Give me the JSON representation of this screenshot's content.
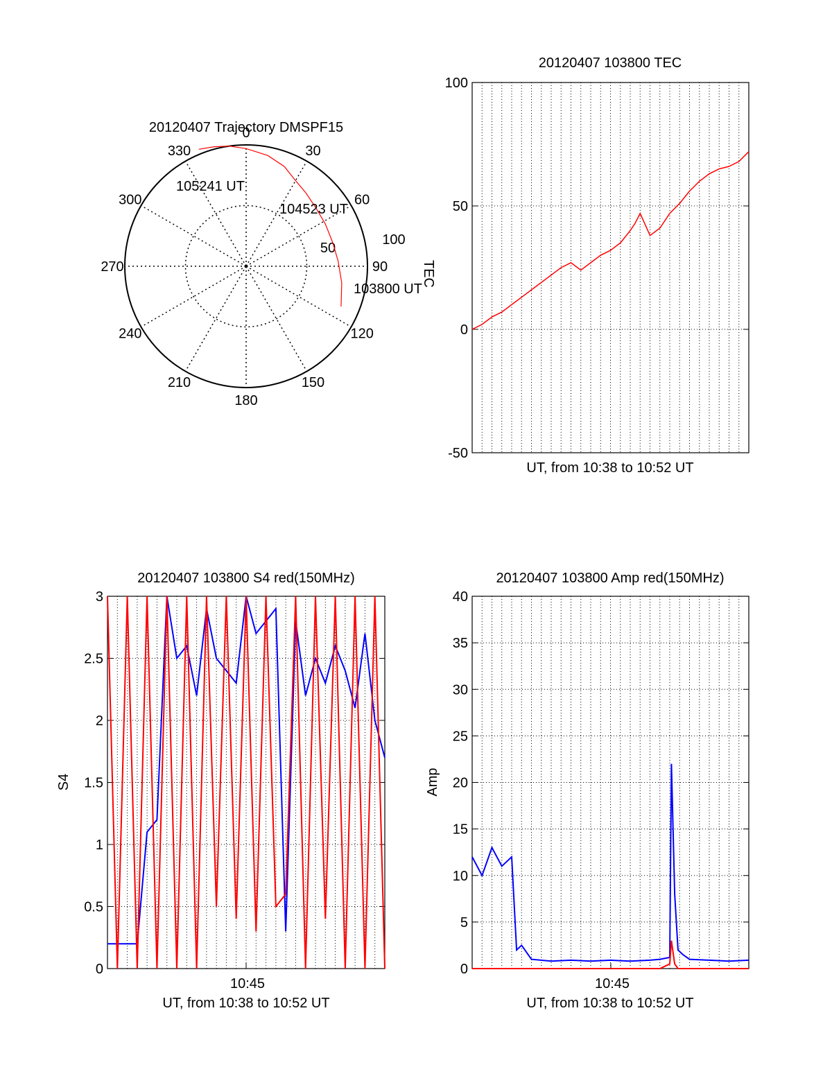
{
  "chart_data": [
    {
      "id": "polar",
      "type": "polar",
      "title": "20120407 Trajectory DMSPF15",
      "azimuth_labels": [
        "0",
        "30",
        "60",
        "90",
        "120",
        "150",
        "180",
        "210",
        "240",
        "270",
        "300",
        "330"
      ],
      "elevation_labels": [
        "50",
        "100"
      ],
      "point_labels": [
        "105241 UT",
        "104523 UT",
        "103800 UT"
      ],
      "track": [
        {
          "azimuth": 113,
          "zenith": 85
        },
        {
          "azimuth": 100,
          "zenith": 80
        },
        {
          "azimuth": 87,
          "zenith": 76
        },
        {
          "azimuth": 75,
          "zenith": 74
        },
        {
          "azimuth": 62,
          "zenith": 74
        },
        {
          "azimuth": 50,
          "zenith": 75
        },
        {
          "azimuth": 39,
          "zenith": 78
        },
        {
          "azimuth": 29,
          "zenith": 82
        },
        {
          "azimuth": 21,
          "zenith": 88
        },
        {
          "azimuth": 11,
          "zenith": 93
        },
        {
          "azimuth": 0,
          "zenith": 97
        },
        {
          "azimuth": -8,
          "zenith": 100
        },
        {
          "azimuth": -15,
          "zenith": 102
        },
        {
          "azimuth": -22,
          "zenith": 104
        }
      ],
      "line_color": "#ff0000"
    },
    {
      "id": "tec",
      "type": "line",
      "title": "20120407 103800 TEC",
      "xlabel": "UT, from 10:38 to 10:52 UT",
      "ylabel": "TEC",
      "ylim": [
        -50,
        100
      ],
      "yticks": [
        "-50",
        "0",
        "50",
        "100"
      ],
      "x": [
        "10:38:00",
        "10:38:30",
        "10:39:00",
        "10:39:30",
        "10:40:00",
        "10:40:30",
        "10:41:00",
        "10:41:30",
        "10:42:00",
        "10:42:30",
        "10:43:00",
        "10:43:30",
        "10:44:00",
        "10:44:30",
        "10:45:00",
        "10:45:30",
        "10:46:00",
        "10:46:15",
        "10:46:30",
        "10:47:00",
        "10:47:30",
        "10:48:00",
        "10:48:30",
        "10:49:00",
        "10:49:30",
        "10:50:00",
        "10:50:30",
        "10:51:00",
        "10:51:30",
        "10:52:00"
      ],
      "series": [
        {
          "values": [
            0,
            2,
            5,
            7,
            10,
            13,
            16,
            19,
            22,
            25,
            27,
            24,
            27,
            30,
            32,
            35,
            40,
            43,
            47,
            38,
            41,
            47,
            51,
            56,
            60,
            63,
            65,
            66,
            68,
            72
          ],
          "color": "#ff0000"
        }
      ]
    },
    {
      "id": "s4",
      "type": "line",
      "title": "20120407 103800 S4 red(150MHz)",
      "xlabel": "UT, from 10:38 to 10:52 UT",
      "ylabel": "S4",
      "xtick": "10:45",
      "ylim": [
        0,
        3
      ],
      "yticks": [
        "0",
        "0.5",
        "1",
        "1.5",
        "2",
        "2.5",
        "3"
      ],
      "x": [
        "10:38:00",
        "10:38:30",
        "10:39:00",
        "10:39:30",
        "10:40:00",
        "10:40:30",
        "10:41:00",
        "10:41:30",
        "10:42:00",
        "10:42:30",
        "10:43:00",
        "10:43:30",
        "10:44:00",
        "10:44:30",
        "10:45:00",
        "10:45:30",
        "10:46:00",
        "10:46:30",
        "10:47:00",
        "10:47:30",
        "10:48:00",
        "10:48:30",
        "10:49:00",
        "10:49:30",
        "10:50:00",
        "10:50:30",
        "10:51:00",
        "10:51:30",
        "10:52:00"
      ],
      "series": [
        {
          "values": [
            0.2,
            0.2,
            0.2,
            0.2,
            1.1,
            1.2,
            3,
            2.5,
            2.6,
            2.2,
            2.9,
            2.5,
            2.4,
            2.3,
            3,
            2.7,
            2.8,
            2.9,
            0.3,
            2.8,
            2.2,
            2.5,
            2.3,
            2.6,
            2.4,
            2.1,
            2.7,
            2.0,
            1.7
          ],
          "color": "#0000ff"
        },
        {
          "values": [
            3,
            0,
            3,
            0,
            3,
            0,
            3,
            0,
            3,
            0,
            3,
            0.5,
            3,
            0.4,
            3,
            0.3,
            3,
            0.5,
            0.6,
            3,
            0,
            3,
            0.4,
            3,
            0,
            3,
            0,
            3,
            0
          ],
          "color": "#ff0000"
        }
      ]
    },
    {
      "id": "amp",
      "type": "line",
      "title": "20120407 103800 Amp red(150MHz)",
      "xlabel": "UT, from 10:38 to 10:52 UT",
      "ylabel": "Amp",
      "xtick": "10:45",
      "ylim": [
        0,
        40
      ],
      "yticks": [
        "0",
        "5",
        "10",
        "15",
        "20",
        "25",
        "30",
        "35",
        "40"
      ],
      "x": [
        "10:38:00",
        "10:38:30",
        "10:39:00",
        "10:39:30",
        "10:40:00",
        "10:40:15",
        "10:40:30",
        "10:41:00",
        "10:42:00",
        "10:43:00",
        "10:44:00",
        "10:45:00",
        "10:46:00",
        "10:47:00",
        "10:47:30",
        "10:48:00",
        "10:48:05",
        "10:48:15",
        "10:48:25",
        "10:48:40",
        "10:49:00",
        "10:50:00",
        "10:51:00",
        "10:52:00"
      ],
      "series": [
        {
          "values": [
            12,
            10,
            13,
            11,
            12,
            2,
            2.5,
            1.0,
            0.8,
            0.9,
            0.8,
            0.9,
            0.8,
            0.9,
            1.0,
            1.2,
            22,
            8,
            2,
            1.5,
            1.0,
            0.9,
            0.8,
            0.9
          ],
          "color": "#0000ff"
        },
        {
          "values": [
            0,
            0,
            0,
            0,
            0,
            0,
            0,
            0,
            0,
            0,
            0,
            0,
            0,
            0,
            0,
            0.5,
            3,
            0.5,
            0,
            0,
            0,
            0,
            0,
            0
          ],
          "color": "#ff0000"
        }
      ]
    }
  ]
}
